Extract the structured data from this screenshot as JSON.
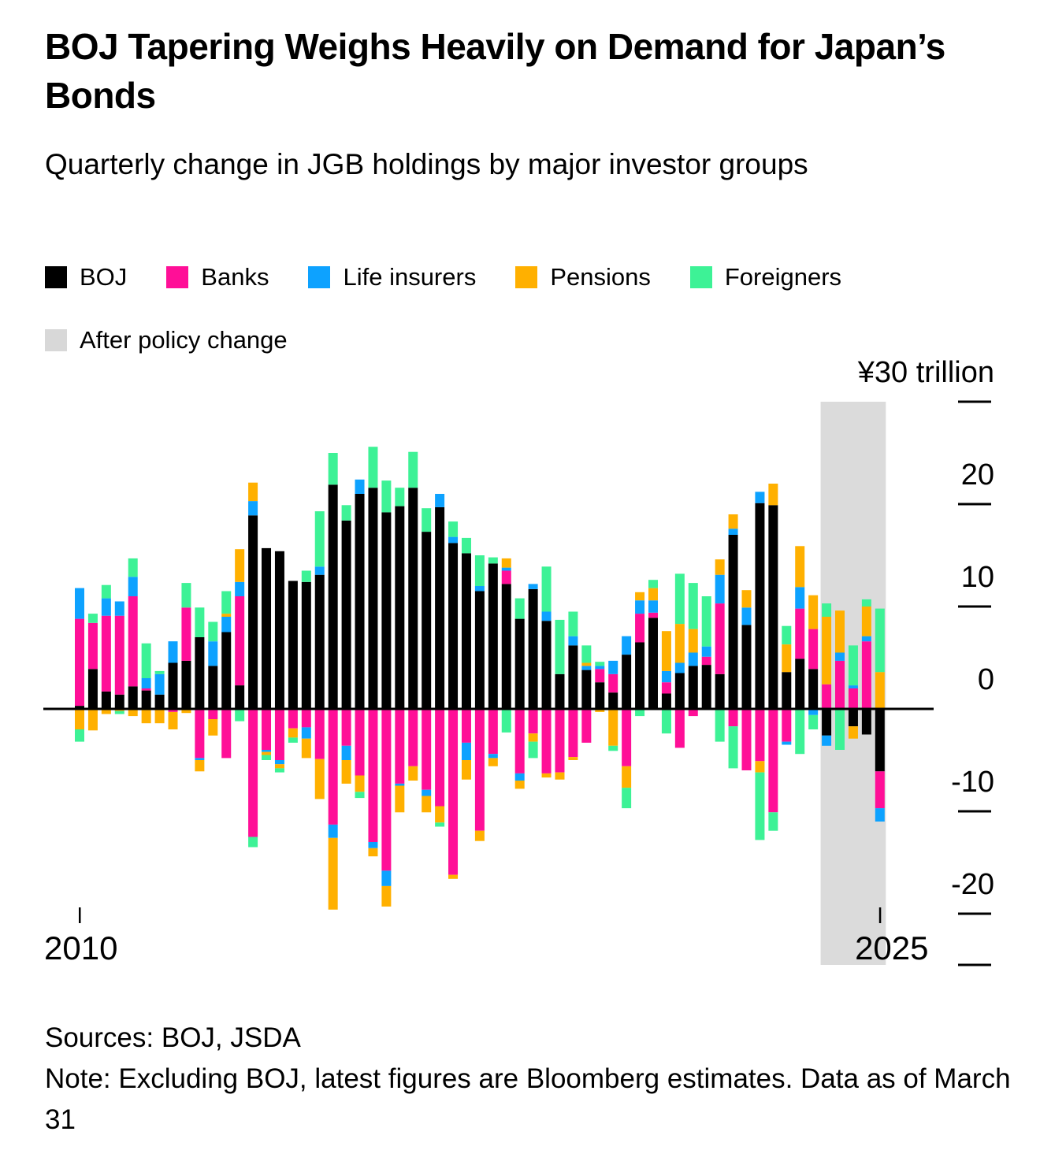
{
  "header": {
    "title": "BOJ Tapering Weighs Heavily on Demand for Japan’s Bonds",
    "subtitle": "Quarterly change in JGB holdings by major investor groups"
  },
  "legend": {
    "items": [
      {
        "label": "BOJ",
        "color": "#000000"
      },
      {
        "label": "Banks",
        "color": "#FF0F97"
      },
      {
        "label": "Life insurers",
        "color": "#0DA2FF"
      },
      {
        "label": "Pensions",
        "color": "#FFB000"
      },
      {
        "label": "Foreigners",
        "color": "#3DF296"
      },
      {
        "label": "After policy change",
        "color": "#D8D8D8"
      }
    ]
  },
  "footer": {
    "sources": "Sources: BOJ, JSDA",
    "note": "Note: Excluding BOJ, latest figures are Bloomberg estimates. Data as of March 31"
  },
  "chart_data": {
    "type": "bar",
    "subtype": "stacked-bar-quarterly",
    "unit": "yen trillion",
    "title": "Quarterly change in JGB holdings by major investor groups",
    "ylim": [
      -25,
      30
    ],
    "grid": false,
    "legend_position": "top",
    "y_axis": {
      "top_label": "¥30 trillion",
      "ticks": [
        {
          "label": "¥30 trillion",
          "value": 30
        },
        {
          "label": "20",
          "value": 20
        },
        {
          "label": "10",
          "value": 10
        },
        {
          "label": "0",
          "value": 0
        },
        {
          "label": "-10",
          "value": -10
        },
        {
          "label": "-20",
          "value": -20
        }
      ],
      "bottom_tick_value": -25
    },
    "x_axis": {
      "ticks": [
        {
          "label": "2010",
          "index": 0
        },
        {
          "label": "2025",
          "index": 60
        }
      ]
    },
    "highlight_band": {
      "label": "After policy change",
      "color": "#DBDBDB",
      "start_index": 56,
      "end_index": 60
    },
    "categories": [
      "2010Q1",
      "2010Q2",
      "2010Q3",
      "2010Q4",
      "2011Q1",
      "2011Q2",
      "2011Q3",
      "2011Q4",
      "2012Q1",
      "2012Q2",
      "2012Q3",
      "2012Q4",
      "2013Q1",
      "2013Q2",
      "2013Q3",
      "2013Q4",
      "2014Q1",
      "2014Q2",
      "2014Q3",
      "2014Q4",
      "2015Q1",
      "2015Q2",
      "2015Q3",
      "2015Q4",
      "2016Q1",
      "2016Q2",
      "2016Q3",
      "2016Q4",
      "2017Q1",
      "2017Q2",
      "2017Q3",
      "2017Q4",
      "2018Q1",
      "2018Q2",
      "2018Q3",
      "2018Q4",
      "2019Q1",
      "2019Q2",
      "2019Q3",
      "2019Q4",
      "2020Q1",
      "2020Q2",
      "2020Q3",
      "2020Q4",
      "2021Q1",
      "2021Q2",
      "2021Q3",
      "2021Q4",
      "2022Q1",
      "2022Q2",
      "2022Q3",
      "2022Q4",
      "2023Q1",
      "2023Q2",
      "2023Q3",
      "2023Q4",
      "2024Q1",
      "2024Q2",
      "2024Q3",
      "2024Q4",
      "2025Q1"
    ],
    "series": [
      {
        "name": "BOJ",
        "color": "#000000",
        "values": [
          0.3,
          3.9,
          1.7,
          1.4,
          2.2,
          1.8,
          1.4,
          4.5,
          4.7,
          7.0,
          4.2,
          7.5,
          2.3,
          18.9,
          15.7,
          15.4,
          12.5,
          12.4,
          13.1,
          21.9,
          18.4,
          21.0,
          21.6,
          19.2,
          19.8,
          21.6,
          17.3,
          19.7,
          16.2,
          15.2,
          11.5,
          14.2,
          12.2,
          8.8,
          11.7,
          8.6,
          3.4,
          6.2,
          3.8,
          2.6,
          1.6,
          5.3,
          6.5,
          8.9,
          1.5,
          3.5,
          4.2,
          4.3,
          3.4,
          17.0,
          8.2,
          20.1,
          19.9,
          3.6,
          4.9,
          3.9,
          -2.6,
          0,
          -1.7,
          -2.5,
          -6.1
        ]
      },
      {
        "name": "Banks",
        "color": "#FF0F97",
        "values": [
          8.5,
          4.5,
          7.4,
          7.7,
          8.8,
          0.2,
          0,
          -0.3,
          5.2,
          -4.8,
          -1.0,
          -4.8,
          8.7,
          -12.5,
          -4.0,
          -5.0,
          -1.9,
          -1.8,
          -4.9,
          -11.3,
          -3.6,
          -6.5,
          -13.0,
          -15.8,
          -7.3,
          -5.6,
          -7.9,
          -9.5,
          -16.2,
          -3.3,
          -11.9,
          -4.4,
          1.3,
          -6.3,
          -2.4,
          -6.3,
          -6.2,
          -4.7,
          -3.3,
          1.3,
          1.8,
          -5.6,
          2.8,
          0.5,
          1.1,
          -3.8,
          -0.7,
          0.8,
          6.9,
          -1.7,
          -6.0,
          -5.1,
          -10.1,
          -3.2,
          4.9,
          3.9,
          2.4,
          4.7,
          2.0,
          6.6,
          -3.6
        ]
      },
      {
        "name": "Life insurers",
        "color": "#0DA2FF",
        "values": [
          3.0,
          0,
          1.7,
          1.4,
          1.9,
          1.0,
          2.0,
          2.1,
          0,
          -0.2,
          2.4,
          1.5,
          1.4,
          1.4,
          -0.2,
          -0.4,
          0,
          -1.1,
          0.8,
          -1.3,
          -1.4,
          1.4,
          -0.6,
          -1.5,
          -0.2,
          0,
          -0.6,
          1.3,
          0.6,
          -1.7,
          0.5,
          -0.4,
          0.3,
          -0.7,
          0.5,
          0.9,
          0,
          0.9,
          0.4,
          0.3,
          1.3,
          1.8,
          1.3,
          1.2,
          1.1,
          1.0,
          1.3,
          1.0,
          2.8,
          0.6,
          1.7,
          1.1,
          0,
          -0.3,
          2.1,
          -0.6,
          -1.0,
          0.8,
          0.3,
          0.5,
          -1.3
        ]
      },
      {
        "name": "Pensions",
        "color": "#FFB000",
        "values": [
          -2.0,
          -2.1,
          -0.5,
          -0.2,
          -0.7,
          -1.4,
          -1.4,
          -1.7,
          -0.4,
          -1.1,
          -1.6,
          0.3,
          3.2,
          1.8,
          -0.3,
          -0.4,
          -0.9,
          -1.9,
          -3.9,
          -7.0,
          -2.3,
          -1.6,
          -0.8,
          -2.0,
          -2.6,
          -1.4,
          -1.6,
          -1.6,
          -0.4,
          -1.9,
          -1.0,
          -0.8,
          0.9,
          -0.8,
          -0.8,
          -0.4,
          -0.7,
          -0.3,
          0.3,
          -0.3,
          -3.6,
          -2.1,
          0.8,
          1.2,
          3.9,
          3.8,
          2.3,
          0,
          1.5,
          1.4,
          1.7,
          -1.1,
          2.1,
          2.7,
          4.0,
          3.3,
          6.6,
          4.1,
          -1.2,
          2.9,
          3.6
        ]
      },
      {
        "name": "Foreigners",
        "color": "#3DF296",
        "values": [
          -1.2,
          0.9,
          1.3,
          -0.3,
          1.8,
          3.4,
          0.3,
          0,
          2.4,
          2.9,
          1.9,
          2.2,
          -1.2,
          -1.0,
          -0.5,
          -0.4,
          -0.5,
          1.1,
          5.4,
          3.1,
          1.5,
          -0.6,
          4.0,
          3.1,
          1.8,
          3.5,
          2.3,
          -0.4,
          1.5,
          1.5,
          3.0,
          0.6,
          -2.3,
          2.0,
          -1.6,
          4.4,
          5.3,
          2.4,
          1.7,
          0.4,
          -0.5,
          -2.0,
          -0.7,
          0.8,
          -2.4,
          4.9,
          4.5,
          4.9,
          -3.2,
          -4.1,
          0,
          -6.6,
          -1.8,
          1.8,
          -4.4,
          -1.4,
          1.3,
          -4.0,
          3.9,
          0.7,
          6.2
        ]
      }
    ]
  }
}
